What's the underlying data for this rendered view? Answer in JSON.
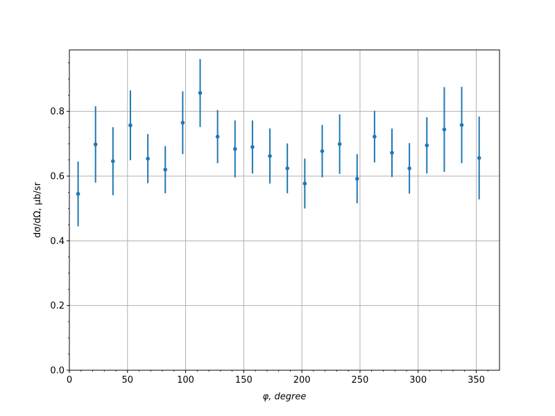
{
  "chart_data": {
    "type": "scatter",
    "title": "",
    "xlabel": "φ, degree",
    "ylabel": "dσ/dΩ, μb/sr",
    "xlim": [
      0,
      370
    ],
    "ylim": [
      0,
      0.99
    ],
    "grid": true,
    "legend": "none",
    "xticks": [
      0,
      50,
      100,
      150,
      200,
      250,
      300,
      350
    ],
    "xtick_labels": [
      "0",
      "50",
      "100",
      "150",
      "200",
      "250",
      "300",
      "350"
    ],
    "yticks": [
      0.0,
      0.2,
      0.4,
      0.6,
      0.8
    ],
    "ytick_labels": [
      "0.0",
      "0.2",
      "0.4",
      "0.6",
      "0.8"
    ],
    "colors": {
      "series": "#1f77b4",
      "grid": "#b0b0b0",
      "axes": "#000000"
    },
    "series": [
      {
        "x": [
          7.5,
          22.5,
          37.5,
          52.5,
          67.5,
          82.5,
          97.5,
          112.5,
          127.5,
          142.5,
          157.5,
          172.5,
          187.5,
          202.5,
          217.5,
          232.5,
          247.5,
          262.5,
          277.5,
          292.5,
          307.5,
          322.5,
          337.5,
          352.5
        ],
        "y": [
          0.545,
          0.698,
          0.646,
          0.757,
          0.654,
          0.62,
          0.765,
          0.857,
          0.722,
          0.684,
          0.69,
          0.662,
          0.624,
          0.577,
          0.677,
          0.699,
          0.592,
          0.722,
          0.672,
          0.624,
          0.695,
          0.744,
          0.758,
          0.656
        ],
        "yerr": [
          0.1,
          0.118,
          0.105,
          0.108,
          0.076,
          0.073,
          0.097,
          0.105,
          0.082,
          0.088,
          0.082,
          0.085,
          0.077,
          0.077,
          0.081,
          0.092,
          0.076,
          0.08,
          0.075,
          0.078,
          0.087,
          0.131,
          0.118,
          0.128
        ]
      }
    ]
  }
}
